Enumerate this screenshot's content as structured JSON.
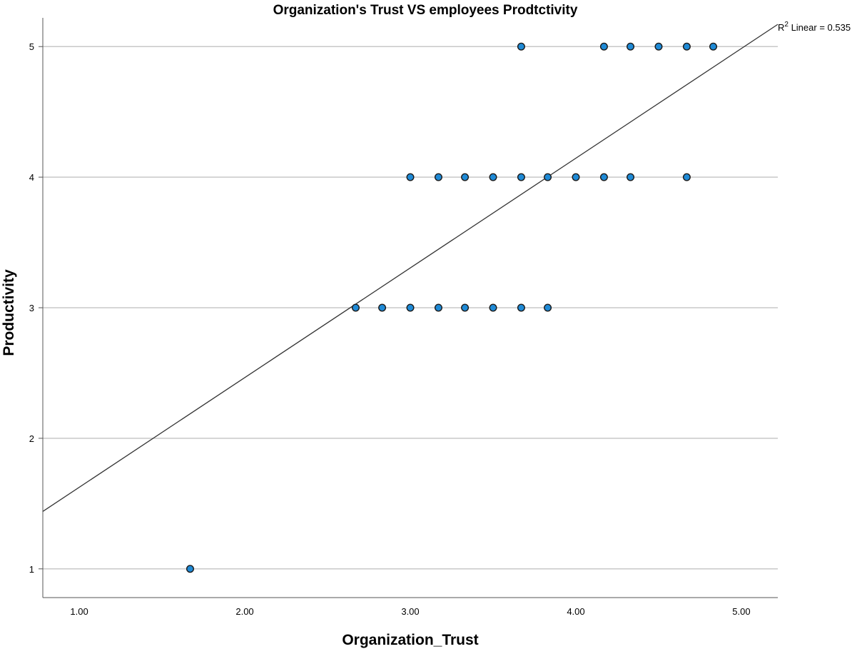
{
  "chart_data": {
    "type": "scatter",
    "title": "Organization's Trust VS employees Prodtctivity",
    "xlabel": "Organization_Trust",
    "ylabel": "Productivity",
    "xlim": [
      0.78,
      5.22
    ],
    "ylim": [
      0.78,
      5.22
    ],
    "x_ticks": [
      "1.00",
      "2.00",
      "3.00",
      "4.00",
      "5.00"
    ],
    "y_ticks": [
      "1",
      "2",
      "3",
      "4",
      "5"
    ],
    "grid": "horizontal",
    "points": [
      {
        "x": 1.67,
        "y": 1
      },
      {
        "x": 2.67,
        "y": 3
      },
      {
        "x": 2.83,
        "y": 3
      },
      {
        "x": 3.0,
        "y": 3
      },
      {
        "x": 3.17,
        "y": 3
      },
      {
        "x": 3.33,
        "y": 3
      },
      {
        "x": 3.5,
        "y": 3
      },
      {
        "x": 3.67,
        "y": 3
      },
      {
        "x": 3.83,
        "y": 3
      },
      {
        "x": 3.0,
        "y": 4
      },
      {
        "x": 3.17,
        "y": 4
      },
      {
        "x": 3.33,
        "y": 4
      },
      {
        "x": 3.5,
        "y": 4
      },
      {
        "x": 3.67,
        "y": 4
      },
      {
        "x": 3.83,
        "y": 4
      },
      {
        "x": 4.0,
        "y": 4
      },
      {
        "x": 4.17,
        "y": 4
      },
      {
        "x": 4.33,
        "y": 4
      },
      {
        "x": 4.67,
        "y": 4
      },
      {
        "x": 3.67,
        "y": 5
      },
      {
        "x": 4.17,
        "y": 5
      },
      {
        "x": 4.33,
        "y": 5
      },
      {
        "x": 4.5,
        "y": 5
      },
      {
        "x": 4.67,
        "y": 5
      },
      {
        "x": 4.83,
        "y": 5
      }
    ],
    "fit_line": {
      "x0": 0.78,
      "y0": 1.44,
      "x1": 5.22,
      "y1": 5.17
    },
    "fit_label_prefix": "R",
    "fit_label_superscript": "2",
    "fit_label_rest": " Linear = 0.535",
    "colors": {
      "point_fill": "#1f8ad6",
      "point_stroke": "#1a1a1a",
      "grid": "#c8c8c8",
      "axis": "#555555",
      "fit_line": "#333333"
    }
  }
}
